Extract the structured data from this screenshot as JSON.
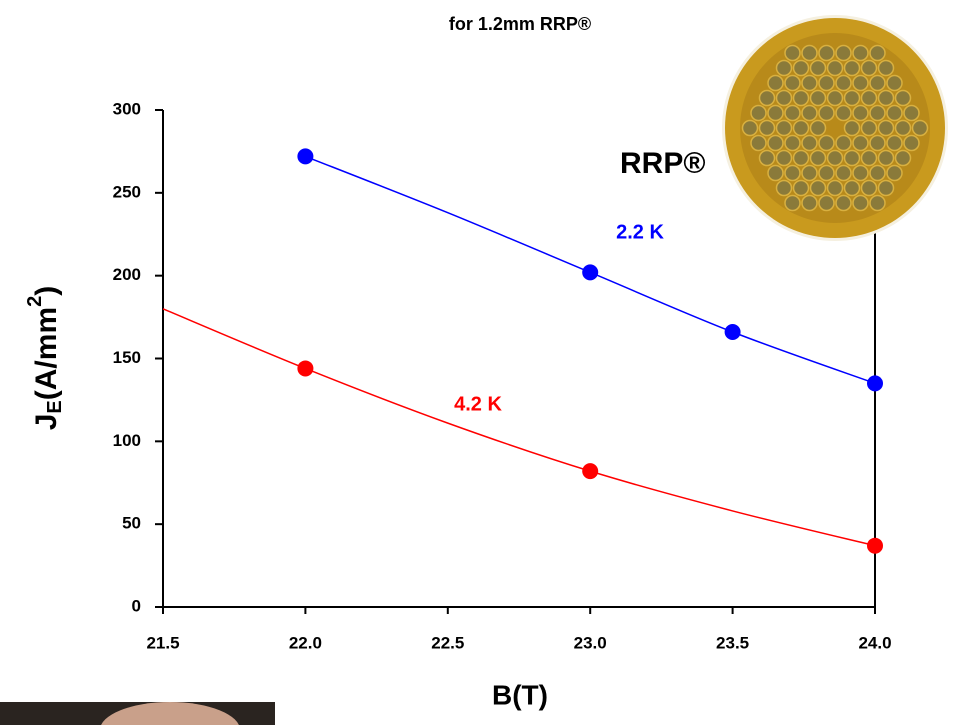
{
  "chart_data": {
    "type": "line",
    "title": "for 1.2mm RRP®",
    "xlabel": "B(T)",
    "ylabel_parts": [
      "J",
      "E",
      "(A/mm",
      "2",
      ")"
    ],
    "annotation": "RRP®",
    "xlim": [
      21.5,
      24.0
    ],
    "ylim": [
      0,
      300
    ],
    "xticks": [
      21.5,
      {
        "value": 22,
        "label": "22.0"
      },
      22.5,
      {
        "value": 23,
        "label": "23.0"
      },
      23.5,
      {
        "value": 24,
        "label": "24.0"
      }
    ],
    "yticks": [
      0,
      50,
      100,
      150,
      200,
      250,
      300
    ],
    "series": [
      {
        "name": "2.2 K",
        "color": "#0000ff",
        "x": [
          22.0,
          23.0,
          23.5,
          24.0
        ],
        "values": [
          272,
          202,
          166,
          135
        ],
        "fit_x": [
          22.0,
          22.5,
          23.0,
          23.5,
          24.0
        ],
        "fit_values": [
          272,
          238,
          202,
          166,
          135
        ]
      },
      {
        "name": "4.2 K",
        "color": "#ff0000",
        "x": [
          22.0,
          23.0,
          24.0
        ],
        "values": [
          144,
          82,
          37
        ],
        "fit_x": [
          21.5,
          22.0,
          22.5,
          23.0,
          23.5,
          24.0
        ],
        "fit_values": [
          180,
          144,
          111,
          82,
          58,
          37
        ]
      }
    ]
  }
}
